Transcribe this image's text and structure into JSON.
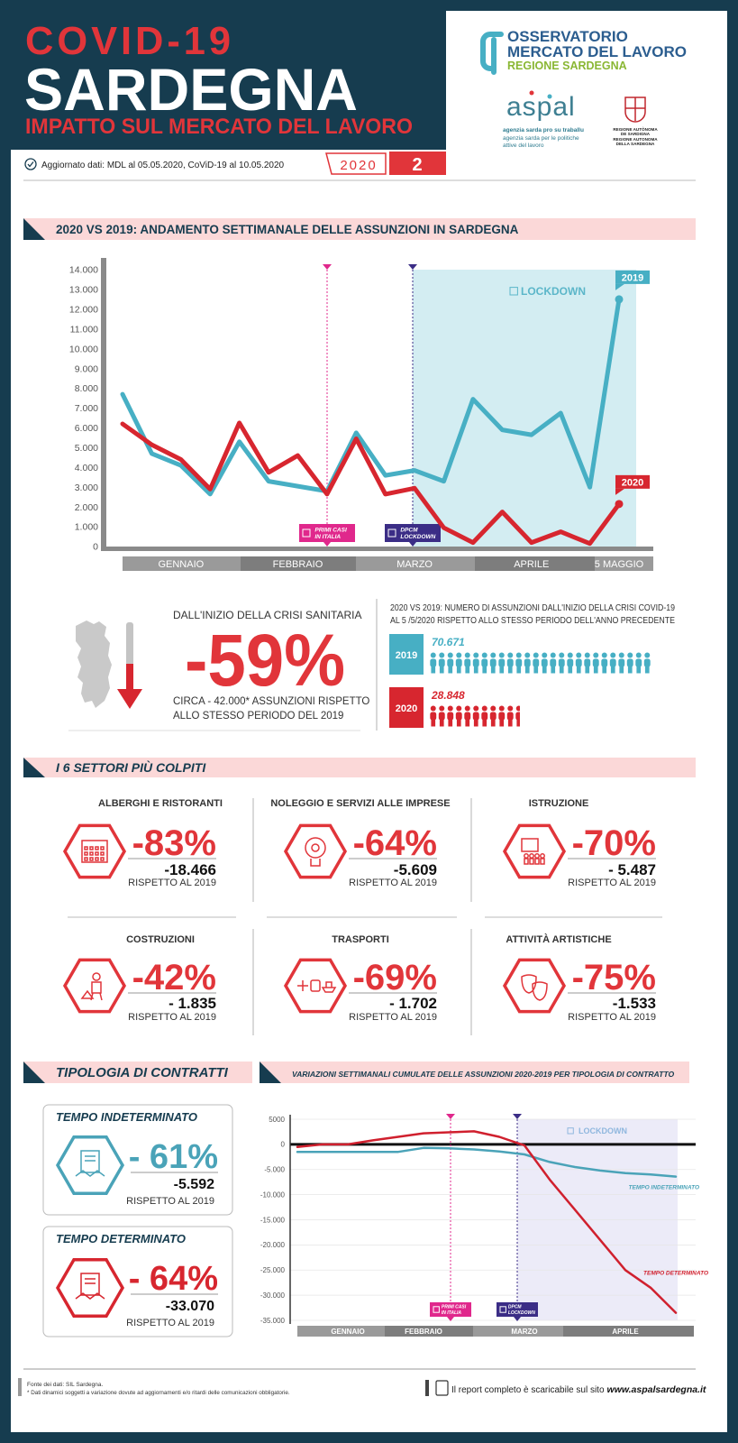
{
  "header": {
    "title": "COVID-19",
    "subtitle": "SARDEGNA",
    "tagline": "IMPATTO SUL MERCATO DEL LAVORO",
    "update": "Aggiornato dati: MDL al 05.05.2020, CoViD-19 al 10.05.2020",
    "year": "2020",
    "issue": "2",
    "logos": {
      "osservatorio": [
        "OSSERVATORIO",
        "MERCATO DEL LAVORO"
      ],
      "osservatorio_region": "REGIONE SARDEGNA",
      "aspal": "aspal",
      "aspal_sub": [
        "agenzia sarda pro su traballu",
        "agenzia sarda per le politiche",
        "attive del lavoro"
      ],
      "region": [
        "REGIONE AUTÒNOMA",
        "DE SARDIGNA",
        "REGIONE AUTONOMA",
        "DELLA SARDEGNA"
      ]
    }
  },
  "chart_data": [
    {
      "type": "line",
      "title": "2020 VS 2019: ANDAMENTO SETTIMANALE DELLE ASSUNZIONI IN SARDEGNA",
      "categories": [
        null,
        null,
        "GENNAIO",
        null,
        null,
        null,
        "FEBBRAIO",
        null,
        null,
        null,
        "MARZO",
        null,
        null,
        null,
        "APRILE",
        null,
        null,
        "5 MAGGIO"
      ],
      "series": [
        {
          "name": "2019",
          "color": "#47afc4",
          "values": [
            7700,
            4700,
            4100,
            2650,
            5300,
            3300,
            3050,
            2800,
            5750,
            3600,
            3850,
            3300,
            7450,
            5900,
            5650,
            6750,
            3000,
            12500
          ]
        },
        {
          "name": "2020",
          "color": "#d7262f",
          "values": [
            6200,
            5150,
            4400,
            2900,
            6250,
            3750,
            4600,
            2650,
            5450,
            2650,
            2950,
            950,
            200,
            1750,
            200,
            750,
            150,
            2150
          ]
        }
      ],
      "ylim": [
        0,
        14000
      ],
      "yticks": [
        0,
        {
          "value": 1000,
          "label": "1.000"
        },
        {
          "value": 2000,
          "label": "2.000"
        },
        {
          "value": 3000,
          "label": "3.000"
        },
        {
          "value": 4000,
          "label": "4.000"
        },
        {
          "value": 5000,
          "label": "5.000"
        },
        {
          "value": 6000,
          "label": "6.000"
        },
        {
          "value": 7000,
          "label": "7.000"
        },
        {
          "value": 8000,
          "label": "8.000"
        },
        {
          "value": 9000,
          "label": "9.000"
        },
        {
          "value": 10000,
          "label": "10.000"
        },
        {
          "value": 11000,
          "label": "11.000"
        },
        {
          "value": 12000,
          "label": "12.000"
        },
        {
          "value": 13000,
          "label": "13.000"
        },
        {
          "value": 14000,
          "label": "14.000"
        }
      ],
      "grid": false,
      "annotations": [
        {
          "text": [
            "PRIMI CASI",
            "IN ITALIA"
          ],
          "color": "#e0288c"
        },
        {
          "text": [
            "DPCM",
            "LOCKDOWN"
          ],
          "color": "#3b2d86"
        }
      ],
      "shaded_label": "LOCKDOWN"
    },
    {
      "type": "line",
      "title": "VARIAZIONI SETTIMANALI CUMULATE DELLE ASSUNZIONI 2020-2019 PER TIPOLOGIA DI CONTRATTO",
      "categories": [
        null,
        null,
        "GENNAIO",
        null,
        null,
        "FEBBRAIO",
        null,
        null,
        null,
        "MARZO",
        null,
        null,
        null,
        "APRILE",
        null,
        null
      ],
      "series": [
        {
          "name": "TEMPO INDETERMINATO",
          "color": "#4aa3b8",
          "values": [
            -1500,
            -1500,
            -1500,
            -1500,
            -1500,
            -700,
            -800,
            -1000,
            -1400,
            -2000,
            -3500,
            -4500,
            -5200,
            -5700,
            -6000,
            -6400
          ]
        },
        {
          "name": "TEMPO DETERMINATO",
          "color": "#d0202e",
          "values": [
            -500,
            0,
            0,
            800,
            1500,
            2200,
            2400,
            2600,
            1500,
            -200,
            -7000,
            -13000,
            -19000,
            -25000,
            -28500,
            -33500
          ]
        }
      ],
      "ylim": [
        -35000,
        5000
      ],
      "yticks": [
        5000,
        0,
        {
          "value": -5000,
          "label": "-5.000"
        },
        {
          "value": -10000,
          "label": "-10.000"
        },
        {
          "value": -15000,
          "label": "-15.000"
        },
        {
          "value": -20000,
          "label": "-20.000"
        },
        {
          "value": -25000,
          "label": "-25.000"
        },
        {
          "value": -30000,
          "label": "-30.000"
        },
        {
          "value": -35000,
          "label": "-35.000"
        }
      ],
      "grid": true,
      "annotations": [
        {
          "text": [
            "PRIMI CASI",
            "IN ITALIA"
          ],
          "color": "#e0288c"
        },
        {
          "text": [
            "DPCM",
            "LOCKDOWN"
          ],
          "color": "#3b2d86"
        }
      ],
      "shaded_label": "LOCKDOWN"
    },
    {
      "type": "pictogram",
      "title": [
        "2020 VS 2019: NUMERO DI ASSUNZIONI DALL'INIZIO DELLA CRISI COVID-19",
        "AL 5 /5/2020 RISPETTO ALLO STESSO PERIODO DELL'ANNO PRECEDENTE"
      ],
      "categories": [
        "2019",
        "2020"
      ],
      "values": [
        70671,
        28848
      ],
      "value_labels": [
        "70.671",
        "28.848"
      ],
      "colors": [
        "#47afc4",
        "#d7262f"
      ]
    }
  ],
  "crisis": {
    "intro": "DALL'INIZIO DELLA CRISI SANITARIA",
    "value": "-59%",
    "note": [
      "CIRCA - 42.000* ASSUNZIONI RISPETTO",
      "ALLO STESSO PERIODO DEL 2019"
    ]
  },
  "sectors": {
    "title": "I 6 SETTORI PIÙ COLPITI",
    "items": [
      {
        "name": "ALBERGHI E RISTORANTI",
        "percent": "-83%",
        "delta": "-18.466",
        "note": "RISPETTO AL 2019"
      },
      {
        "name": "NOLEGGIO E SERVIZI ALLE IMPRESE",
        "percent": "-64%",
        "delta": "-5.609",
        "note": "RISPETTO AL 2019"
      },
      {
        "name": "ISTRUZIONE",
        "percent": "-70%",
        "delta": "- 5.487",
        "note": "RISPETTO AL 2019"
      },
      {
        "name": "COSTRUZIONI",
        "percent": "-42%",
        "delta": "- 1.835",
        "note": "RISPETTO AL 2019"
      },
      {
        "name": "TRASPORTI",
        "percent": "-69%",
        "delta": "- 1.702",
        "note": "RISPETTO AL 2019"
      },
      {
        "name": "ATTIVITÀ ARTISTICHE",
        "percent": "-75%",
        "delta": "-1.533",
        "note": "RISPETTO AL 2019"
      }
    ]
  },
  "contracts": {
    "title": "TIPOLOGIA DI CONTRATTI",
    "items": [
      {
        "name": "TEMPO INDETERMINATO",
        "percent": "- 61%",
        "delta": "-5.592",
        "note": "RISPETTO AL 2019",
        "color": "#4aa3b8"
      },
      {
        "name": "TEMPO DETERMINATO",
        "percent": "- 64%",
        "delta": "-33.070",
        "note": "RISPETTO AL 2019",
        "color": "#d7262f"
      }
    ]
  },
  "footer": {
    "source": "Fonte dei dati: SIL Sardegna.",
    "note": "* Dati dinamici soggetti a variazione dovute ad aggiornamenti e/o ritardi delle comunicazioni obbligatorie.",
    "report": "Il report completo è scaricabile sul sito",
    "url": "www.aspalsardegna.it"
  }
}
